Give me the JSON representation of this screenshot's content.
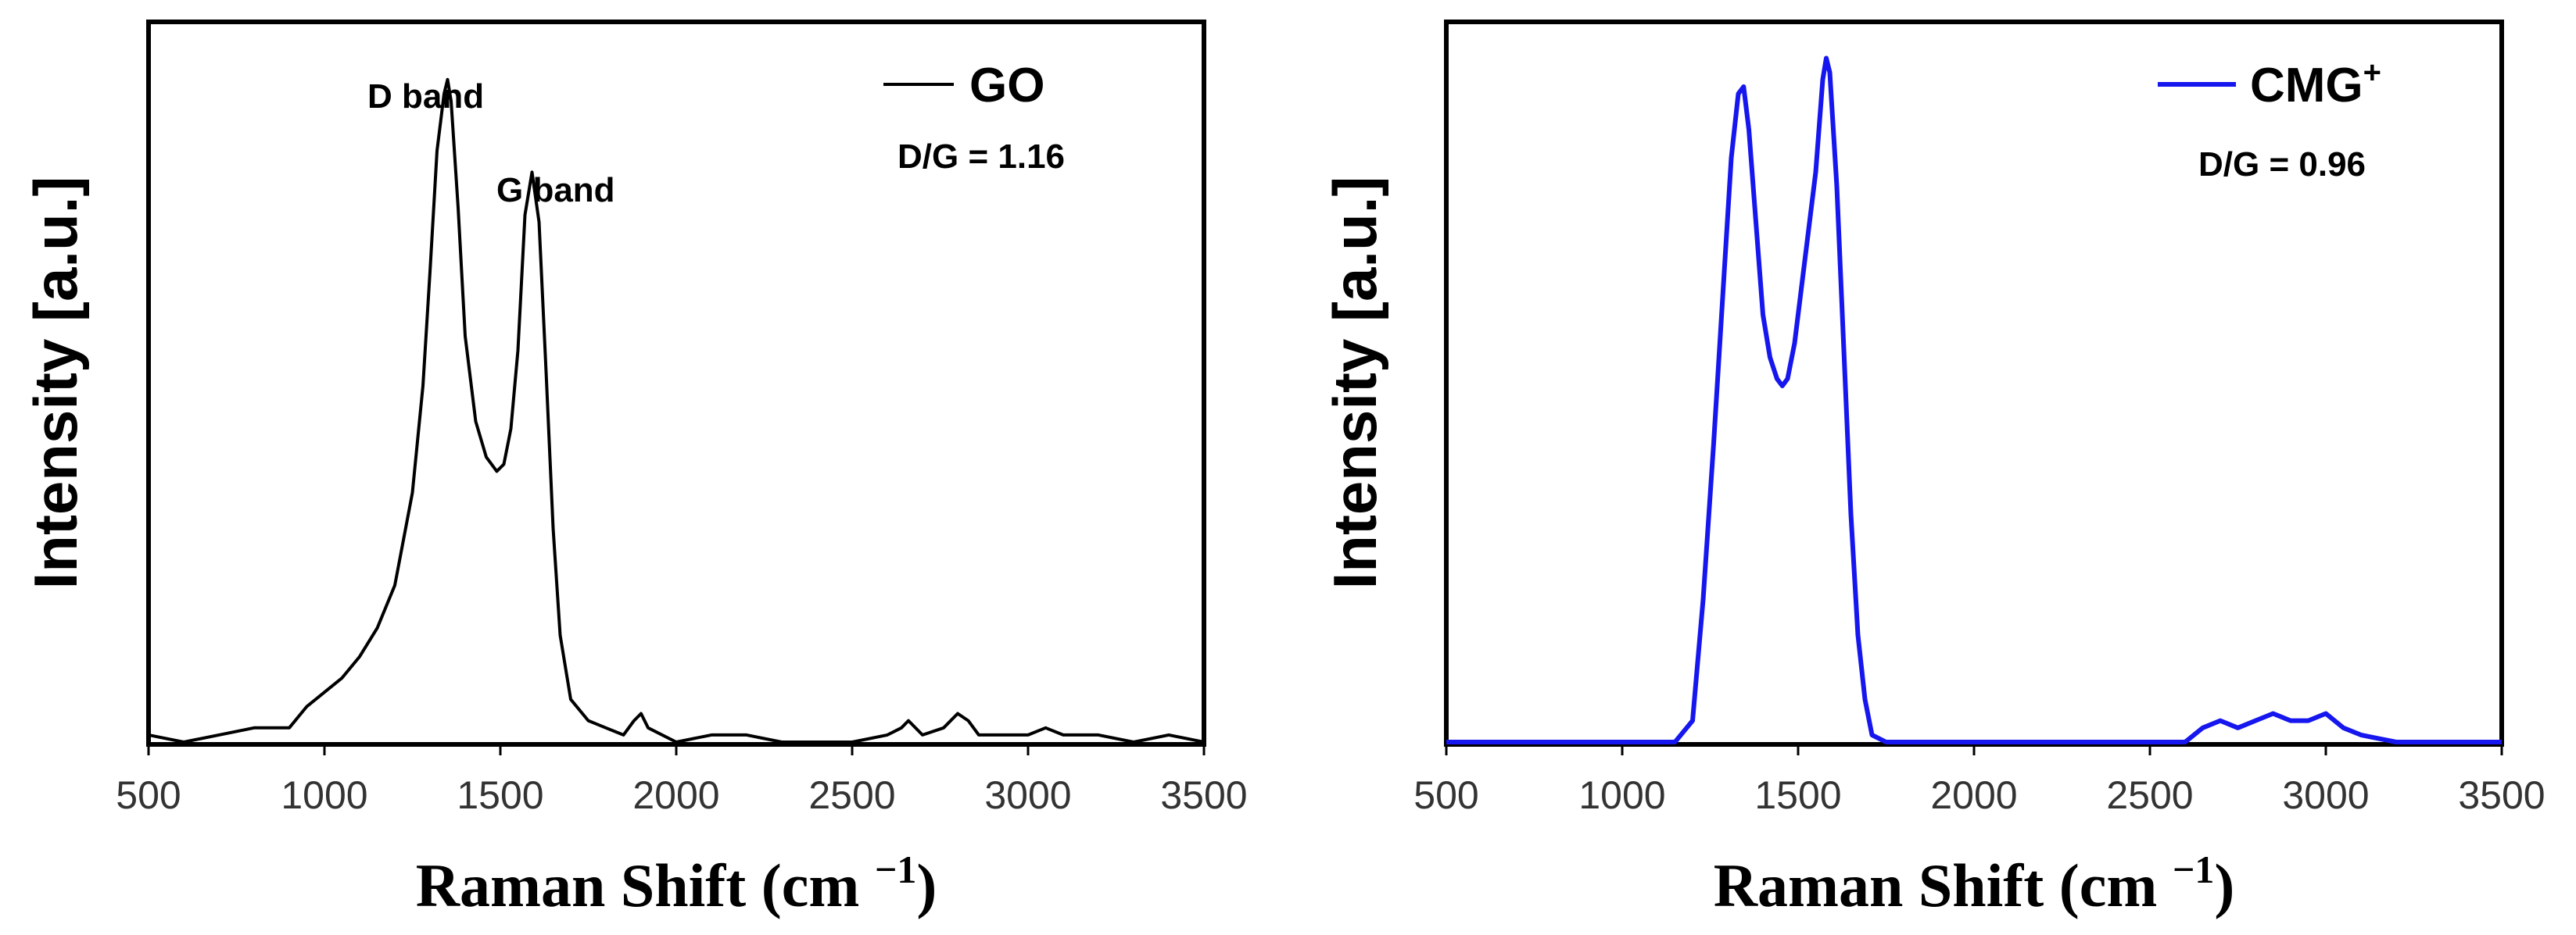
{
  "chart_data": [
    {
      "type": "line",
      "color": "#000000",
      "xlim": [
        500,
        3500
      ],
      "xticks": [
        "500",
        "1000",
        "1500",
        "2000",
        "2500",
        "3000",
        "3500"
      ],
      "xlabel": "Raman Shift (cm −1)",
      "xlabel_main": "Raman Shift (cm ",
      "xlabel_sup": "−1",
      "xlabel_close": ")",
      "ylabel": "Intensity [a.u.]",
      "legend": {
        "label": "GO",
        "position": "top-right"
      },
      "annotations": {
        "ratio": "D/G = 1.16",
        "d_band": "D band",
        "g_band": "G band"
      },
      "peaks": [
        {
          "center": 1350,
          "height": 0.93,
          "width": 55
        },
        {
          "center": 1590,
          "height": 0.8,
          "width": 40
        }
      ],
      "x": [
        500,
        600,
        700,
        800,
        900,
        950,
        1000,
        1050,
        1100,
        1150,
        1200,
        1250,
        1280,
        1300,
        1320,
        1340,
        1350,
        1360,
        1380,
        1400,
        1430,
        1460,
        1490,
        1510,
        1530,
        1550,
        1570,
        1590,
        1610,
        1630,
        1650,
        1670,
        1700,
        1750,
        1800,
        1850,
        1880,
        1900,
        1920,
        2000,
        2100,
        2200,
        2300,
        2400,
        2500,
        2600,
        2640,
        2660,
        2700,
        2760,
        2800,
        2830,
        2860,
        2900,
        3000,
        3050,
        3100,
        3200,
        3300,
        3400,
        3500
      ],
      "y": [
        0.01,
        0.0,
        0.01,
        0.02,
        0.02,
        0.05,
        0.07,
        0.09,
        0.12,
        0.16,
        0.22,
        0.35,
        0.5,
        0.66,
        0.83,
        0.91,
        0.93,
        0.9,
        0.75,
        0.57,
        0.45,
        0.4,
        0.38,
        0.39,
        0.44,
        0.55,
        0.74,
        0.8,
        0.73,
        0.52,
        0.3,
        0.15,
        0.06,
        0.03,
        0.02,
        0.01,
        0.03,
        0.04,
        0.02,
        0.0,
        0.01,
        0.01,
        0.0,
        0.0,
        0.0,
        0.01,
        0.02,
        0.03,
        0.01,
        0.02,
        0.04,
        0.03,
        0.01,
        0.01,
        0.01,
        0.02,
        0.01,
        0.01,
        0.0,
        0.01,
        0.0
      ]
    },
    {
      "type": "line",
      "color": "#1616ee",
      "xlim": [
        500,
        3500
      ],
      "xticks": [
        "500",
        "1000",
        "1500",
        "2000",
        "2500",
        "3000",
        "3500"
      ],
      "xlabel": "Raman Shift (cm −1)",
      "xlabel_main": "Raman Shift (cm ",
      "xlabel_sup": "−1",
      "xlabel_close": ")",
      "ylabel": "Intensity [a.u.]",
      "legend": {
        "label": "CMG",
        "sup": "+",
        "position": "top-right"
      },
      "annotations": {
        "ratio": "D/G = 0.96"
      },
      "x": [
        500,
        1000,
        1150,
        1200,
        1230,
        1260,
        1290,
        1310,
        1330,
        1345,
        1360,
        1380,
        1400,
        1420,
        1440,
        1455,
        1470,
        1490,
        1510,
        1530,
        1550,
        1570,
        1580,
        1590,
        1610,
        1630,
        1650,
        1670,
        1690,
        1710,
        1750,
        2000,
        2300,
        2600,
        2650,
        2700,
        2750,
        2800,
        2850,
        2900,
        2950,
        3000,
        3050,
        3100,
        3200,
        3500
      ],
      "y": [
        0.0,
        0.0,
        0.0,
        0.03,
        0.2,
        0.42,
        0.66,
        0.82,
        0.91,
        0.92,
        0.86,
        0.73,
        0.6,
        0.54,
        0.51,
        0.5,
        0.51,
        0.56,
        0.64,
        0.72,
        0.8,
        0.93,
        0.96,
        0.94,
        0.78,
        0.55,
        0.32,
        0.15,
        0.06,
        0.01,
        0.0,
        0.0,
        0.0,
        0.0,
        0.02,
        0.03,
        0.02,
        0.03,
        0.04,
        0.03,
        0.03,
        0.04,
        0.02,
        0.01,
        0.0,
        0.0
      ]
    }
  ]
}
